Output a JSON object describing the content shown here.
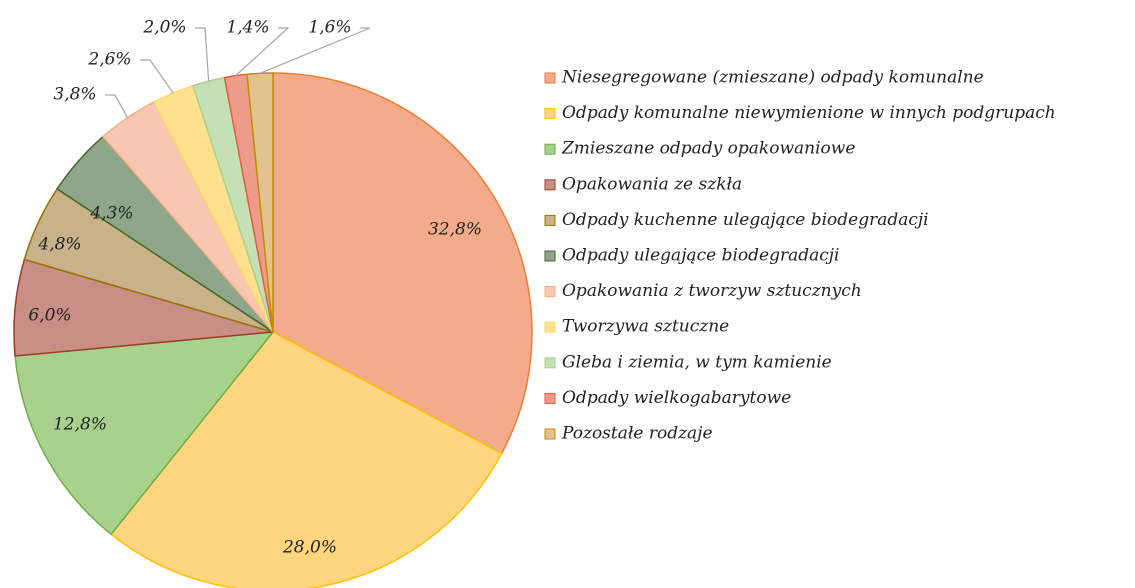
{
  "chart_data": {
    "type": "pie",
    "categories": [
      "Niesegregowane (zmieszane) odpady komunalne",
      "Odpady komunalne niewymienione w innych podgrupach",
      "Zmieszane odpady opakowaniowe",
      "Opakowania ze szkła",
      "Odpady kuchenne ulegające biodegradacji",
      "Odpady ulegające biodegradacji",
      "Opakowania z tworzyw sztucznych",
      "Tworzywa sztuczne",
      "Gleba i ziemia, w tym kamienie",
      "Odpady wielkogabarytowe",
      "Pozostałe rodzaje"
    ],
    "values": [
      32.8,
      28.0,
      12.8,
      6.0,
      4.8,
      4.3,
      3.8,
      2.6,
      2.0,
      1.4,
      1.6
    ],
    "value_labels": [
      "32,8%",
      "28,0%",
      "12,8%",
      "6,0%",
      "4,8%",
      "4,3%",
      "3,8%",
      "2,6%",
      "2,0%",
      "1,4%",
      "1,6%"
    ],
    "colors": [
      "#f4ab8c",
      "#ffd580",
      "#a9d18e",
      "#c98f87",
      "#c8b289",
      "#8fa68a",
      "#f8c6b1",
      "#ffe08f",
      "#c5e0b4",
      "#ee9c8a",
      "#e2c38f"
    ],
    "legend": "right"
  }
}
